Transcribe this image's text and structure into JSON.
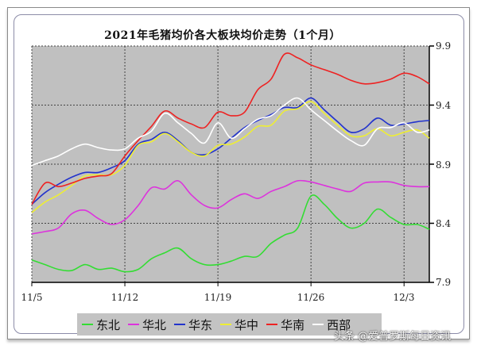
{
  "chart_data": {
    "type": "line",
    "title": "2021年毛猪均价各大板块均价走势（1个月）",
    "xlabel": "",
    "ylabel": "",
    "x_ticks": [
      "11/5",
      "11/12",
      "11/19",
      "11/26",
      "12/3"
    ],
    "y_ticks": [
      "9.9",
      "9.4",
      "8.9",
      "8.4",
      "7.9"
    ],
    "ylim": [
      7.9,
      9.9
    ],
    "x_range_days": [
      0,
      29.9
    ],
    "grid": true,
    "legend_position": "bottom",
    "plot_background": "#c0c0c0",
    "series": [
      {
        "name": "东北",
        "color": "#33dd33",
        "x": [
          0,
          1,
          2,
          3,
          4,
          5,
          6,
          7,
          8,
          9,
          10,
          11,
          12,
          13,
          14,
          15,
          16,
          17,
          18,
          19,
          20,
          21,
          22,
          23,
          24,
          25,
          26,
          27,
          28,
          29,
          29.9
        ],
        "y": [
          8.09,
          8.05,
          8.01,
          8.0,
          8.05,
          8.01,
          8.02,
          7.99,
          8.01,
          8.1,
          8.15,
          8.19,
          8.1,
          8.05,
          8.05,
          8.08,
          8.12,
          8.12,
          8.23,
          8.3,
          8.36,
          8.63,
          8.56,
          8.44,
          8.36,
          8.4,
          8.52,
          8.45,
          8.39,
          8.39,
          8.35
        ]
      },
      {
        "name": "华北",
        "color": "#dd33dd",
        "x": [
          0,
          1,
          2,
          3,
          4,
          5,
          6,
          7,
          8,
          9,
          10,
          11,
          12,
          13,
          14,
          15,
          16,
          17,
          18,
          19,
          20,
          21,
          22,
          23,
          24,
          25,
          26,
          27,
          28,
          29,
          29.9
        ],
        "y": [
          8.31,
          8.33,
          8.36,
          8.48,
          8.51,
          8.44,
          8.39,
          8.43,
          8.55,
          8.7,
          8.69,
          8.76,
          8.64,
          8.55,
          8.53,
          8.6,
          8.65,
          8.61,
          8.67,
          8.71,
          8.76,
          8.75,
          8.72,
          8.69,
          8.67,
          8.74,
          8.75,
          8.75,
          8.72,
          8.71,
          8.71
        ]
      },
      {
        "name": "华东",
        "color": "#2233cc",
        "x": [
          0,
          1,
          2,
          3,
          4,
          5,
          6,
          7,
          8,
          9,
          10,
          11,
          12,
          13,
          14,
          15,
          16,
          17,
          18,
          19,
          20,
          21,
          22,
          23,
          24,
          25,
          26,
          27,
          28,
          29,
          29.9
        ],
        "y": [
          8.56,
          8.66,
          8.73,
          8.79,
          8.83,
          8.83,
          8.87,
          8.93,
          9.07,
          9.11,
          9.17,
          9.1,
          9.0,
          8.98,
          9.03,
          9.12,
          9.21,
          9.27,
          9.32,
          9.38,
          9.38,
          9.46,
          9.36,
          9.26,
          9.17,
          9.2,
          9.29,
          9.23,
          9.24,
          9.26,
          9.27
        ]
      },
      {
        "name": "华中",
        "color": "#eeee33",
        "x": [
          0,
          1,
          2,
          3,
          4,
          5,
          6,
          7,
          8,
          9,
          10,
          11,
          12,
          13,
          14,
          15,
          16,
          17,
          18,
          19,
          20,
          21,
          22,
          23,
          24,
          25,
          26,
          27,
          28,
          29,
          29.9
        ],
        "y": [
          8.49,
          8.58,
          8.64,
          8.72,
          8.8,
          8.81,
          8.81,
          8.89,
          9.06,
          9.09,
          9.16,
          9.09,
          9.0,
          8.97,
          9.06,
          9.07,
          9.13,
          9.22,
          9.23,
          9.35,
          9.37,
          9.43,
          9.33,
          9.23,
          9.14,
          9.14,
          9.2,
          9.14,
          9.17,
          9.19,
          9.12
        ]
      },
      {
        "name": "华南",
        "color": "#ee2222",
        "x": [
          0,
          1,
          2,
          3,
          4,
          5,
          6,
          7,
          8,
          9,
          10,
          11,
          12,
          13,
          14,
          15,
          16,
          17,
          18,
          19,
          20,
          21,
          22,
          23,
          24,
          25,
          26,
          27,
          28,
          29,
          29.9
        ],
        "y": [
          8.56,
          8.74,
          8.71,
          8.74,
          8.78,
          8.8,
          8.82,
          8.97,
          9.1,
          9.22,
          9.35,
          9.29,
          9.24,
          9.21,
          9.34,
          9.31,
          9.34,
          9.53,
          9.62,
          9.83,
          9.8,
          9.74,
          9.7,
          9.66,
          9.61,
          9.58,
          9.59,
          9.62,
          9.67,
          9.64,
          9.58
        ]
      },
      {
        "name": "西部",
        "color": "#ffffff",
        "x": [
          0,
          1,
          2,
          3,
          4,
          5,
          6,
          7,
          8,
          9,
          10,
          11,
          12,
          13,
          14,
          15,
          16,
          17,
          18,
          19,
          20,
          21,
          22,
          23,
          24,
          25,
          26,
          27,
          28,
          29,
          29.9
        ],
        "y": [
          8.89,
          8.93,
          8.97,
          9.03,
          9.07,
          9.04,
          9.02,
          9.03,
          9.12,
          9.18,
          9.33,
          9.25,
          9.16,
          9.08,
          9.25,
          9.12,
          9.2,
          9.28,
          9.31,
          9.4,
          9.46,
          9.36,
          9.27,
          9.18,
          9.1,
          9.06,
          9.2,
          9.21,
          9.25,
          9.17,
          9.19
        ]
      }
    ]
  },
  "legend": {
    "items": [
      {
        "label": "东北",
        "color": "#33dd33"
      },
      {
        "label": "华北",
        "color": "#dd33dd"
      },
      {
        "label": "华东",
        "color": "#2233cc"
      },
      {
        "label": "华中",
        "color": "#eeee33"
      },
      {
        "label": "华南",
        "color": "#ee2222"
      },
      {
        "label": "西部",
        "color": "#ffffff"
      }
    ]
  },
  "watermark": "头条 @爱普罗斯每日资讯"
}
